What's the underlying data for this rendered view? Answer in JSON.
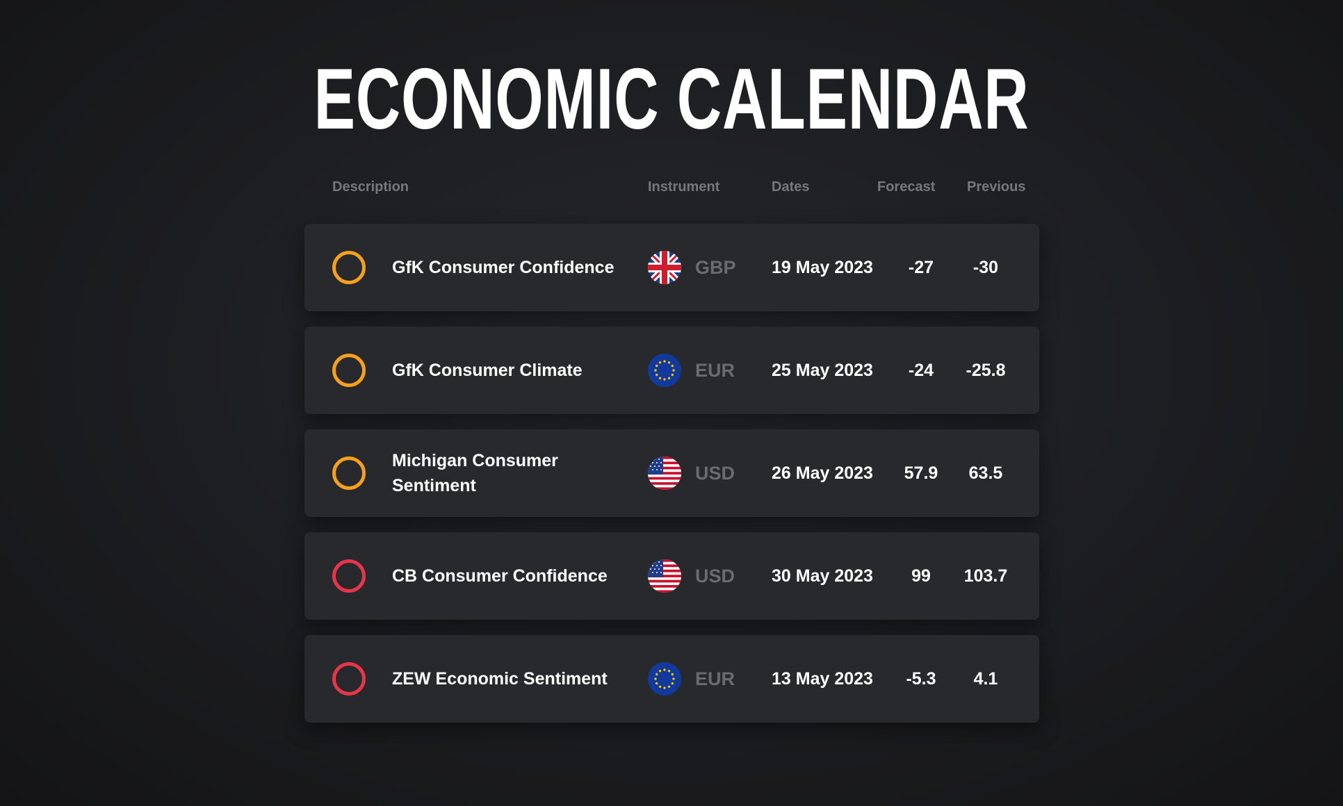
{
  "title": "ECONOMIC CALENDAR",
  "colors": {
    "background": "#1e1f22",
    "row_background": "#28292d",
    "header_text": "#77787c",
    "currency_text": "#6a6b6f",
    "status_orange": "#f5a11a",
    "status_red": "#e8354a"
  },
  "columns": {
    "description": "Description",
    "instrument": "Instrument",
    "dates": "Dates",
    "forecast": "Forecast",
    "previous": "Previous"
  },
  "rows": [
    {
      "status": "orange",
      "description": "GfK Consumer Confidence",
      "flag_icon": "uk-flag-icon",
      "currency": "GBP",
      "date": "19 May 2023",
      "forecast": "-27",
      "previous": "-30"
    },
    {
      "status": "orange",
      "description": "GfK Consumer Climate",
      "flag_icon": "eu-flag-icon",
      "currency": "EUR",
      "date": "25 May 2023",
      "forecast": "-24",
      "previous": "-25.8"
    },
    {
      "status": "orange",
      "description": "Michigan Consumer Sentiment",
      "flag_icon": "us-flag-icon",
      "currency": "USD",
      "date": "26 May 2023",
      "forecast": "57.9",
      "previous": "63.5"
    },
    {
      "status": "red",
      "description": "CB Consumer Confidence",
      "flag_icon": "us-flag-icon",
      "currency": "USD",
      "date": "30 May 2023",
      "forecast": "99",
      "previous": "103.7"
    },
    {
      "status": "red",
      "description": "ZEW Economic Sentiment",
      "flag_icon": "eu-flag-icon",
      "currency": "EUR",
      "date": "13 May 2023",
      "forecast": "-5.3",
      "previous": "4.1"
    }
  ]
}
